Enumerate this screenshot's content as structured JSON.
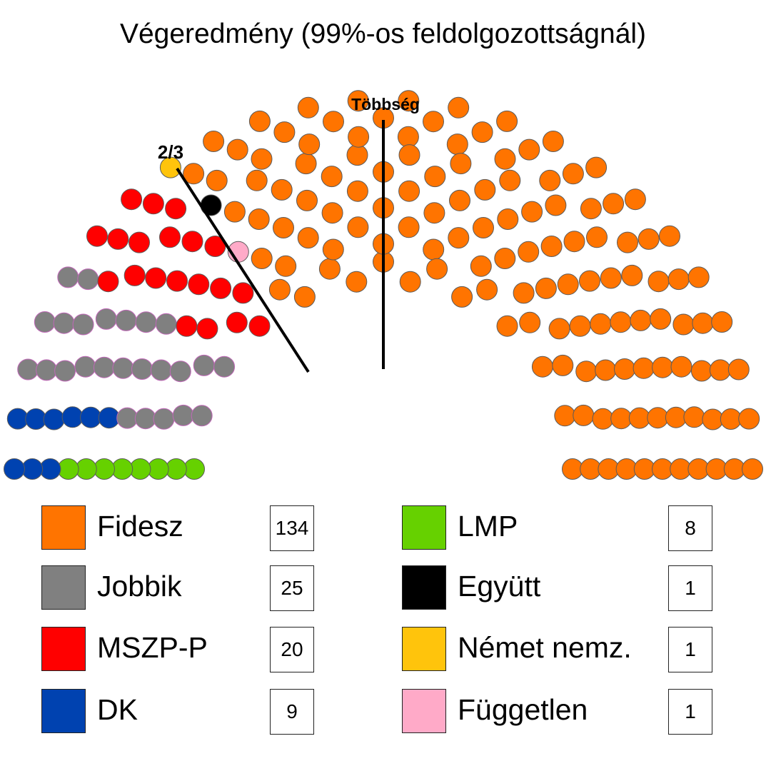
{
  "chart_data": {
    "type": "parliament",
    "title": "Végeredmény (99%-os feldolgozottságnál)",
    "annotations": {
      "majority_label": "Többség",
      "two_thirds_label": "2/3"
    },
    "parties": [
      {
        "name": "Fidesz",
        "seats": 134,
        "count_label": "134",
        "color": "#ff7400"
      },
      {
        "name": "Jobbik",
        "seats": 25,
        "count_label": "25",
        "color": "#808080"
      },
      {
        "name": "MSZP-P",
        "seats": 20,
        "count_label": "20",
        "color": "#ff0000"
      },
      {
        "name": "DK",
        "seats": 9,
        "count_label": "9",
        "color": "#0042b0"
      },
      {
        "name": "LMP",
        "seats": 8,
        "count_label": "8",
        "color": "#66d100"
      },
      {
        "name": "Együtt",
        "seats": 1,
        "count_label": "1",
        "color": "#000000"
      },
      {
        "name": "Német nemz.",
        "seats": 1,
        "count_label": "1",
        "color": "#ffc40c"
      },
      {
        "name": "Független",
        "seats": 1,
        "count_label": "1",
        "color": "#ffaac8"
      }
    ],
    "seat_order": [
      "LMP",
      "DK",
      "Jobbik",
      "MSZP-P",
      "Német nemz.",
      "Független",
      "Együtt",
      "Fidesz"
    ],
    "total_seats": 199,
    "majority_seats": 100,
    "two_thirds_seats": 133
  }
}
